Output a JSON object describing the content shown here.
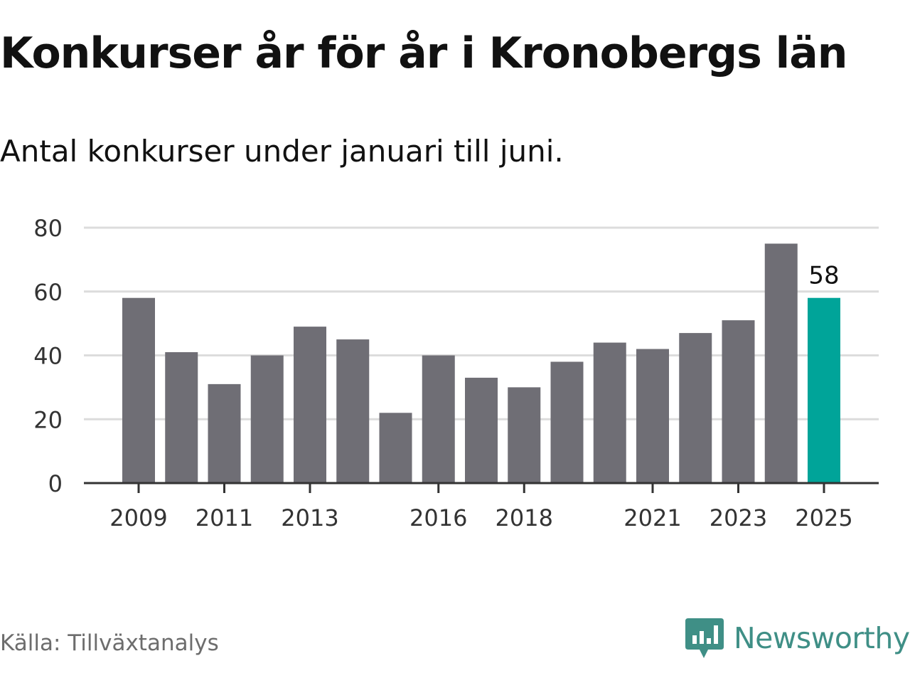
{
  "header": {
    "title": "Konkurser år för år i Kronobergs län",
    "subtitle": "Antal konkurser under januari till juni."
  },
  "footer": {
    "source": "Källa: Tillväxtanalys",
    "brand": "Newsworthy"
  },
  "colors": {
    "bar": "#6f6e75",
    "highlight": "#00a499",
    "grid": "#dcdcdc",
    "axis": "#333333",
    "brand": "#3f8f86"
  },
  "icons": {
    "brand_logo": "newsworthy-logo-icon"
  },
  "chart_data": {
    "type": "bar",
    "categories": [
      "2009",
      "2010",
      "2011",
      "2012",
      "2013",
      "2014",
      "2015",
      "2016",
      "2017",
      "2018",
      "2019",
      "2020",
      "2021",
      "2022",
      "2023",
      "2024",
      "2025"
    ],
    "values": [
      58,
      41,
      31,
      40,
      49,
      45,
      22,
      40,
      33,
      30,
      38,
      44,
      42,
      47,
      51,
      75,
      58
    ],
    "x_tick_labels": [
      "2009",
      "2011",
      "2013",
      "2016",
      "2018",
      "2021",
      "2023",
      "2025"
    ],
    "y_ticks": [
      0,
      20,
      40,
      60,
      80
    ],
    "ylim": [
      0,
      80
    ],
    "grid": true,
    "highlight_category": "2025",
    "highlight_label": "58",
    "xlabel": "",
    "ylabel": ""
  }
}
